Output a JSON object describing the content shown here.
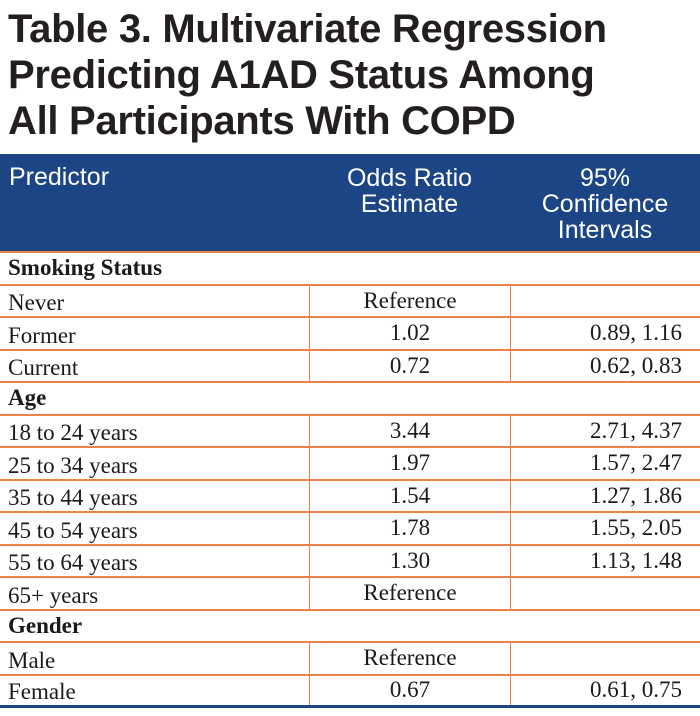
{
  "title": "Table 3. Multivariate Regression\nPredicting A1AD Status Among\nAll Participants With COPD",
  "headers": [
    "Predictor",
    "Odds Ratio\nEstimate",
    "95%\nConfidence\nIntervals"
  ],
  "sections": [
    {
      "label": "Smoking Status",
      "rows": [
        {
          "predictor": "Never",
          "or": "Reference",
          "ci": ""
        },
        {
          "predictor": "Former",
          "or": "1.02",
          "ci": "0.89, 1.16"
        },
        {
          "predictor": "Current",
          "or": "0.72",
          "ci": "0.62, 0.83"
        }
      ]
    },
    {
      "label": "Age",
      "rows": [
        {
          "predictor": "18 to 24 years",
          "or": "3.44",
          "ci": "2.71, 4.37"
        },
        {
          "predictor": "25 to 34 years",
          "or": "1.97",
          "ci": "1.57, 2.47"
        },
        {
          "predictor": "35 to 44 years",
          "or": "1.54",
          "ci": "1.27, 1.86"
        },
        {
          "predictor": "45 to 54 years",
          "or": "1.78",
          "ci": "1.55, 2.05"
        },
        {
          "predictor": "55 to 64 years",
          "or": "1.30",
          "ci": "1.13, 1.48"
        },
        {
          "predictor": "65+ years",
          "or": "Reference",
          "ci": ""
        }
      ]
    },
    {
      "label": "Gender",
      "rows": [
        {
          "predictor": "Male",
          "or": "Reference",
          "ci": ""
        },
        {
          "predictor": "Female",
          "or": "0.67",
          "ci": "0.61, 0.75"
        }
      ]
    }
  ],
  "colors": {
    "header_bg": "#1b4585",
    "rule": "#e9834a"
  }
}
